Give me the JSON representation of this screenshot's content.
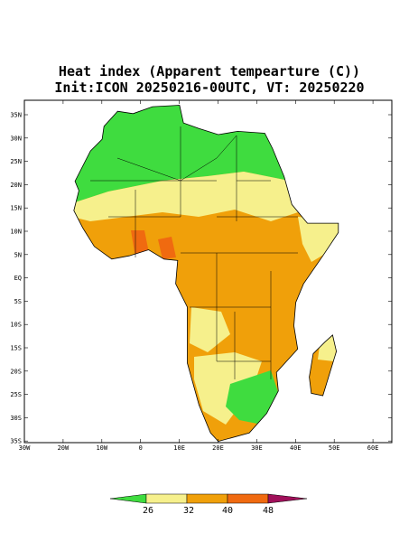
{
  "title": {
    "line1": "Heat index (Apparent tempearture (C))",
    "line2": "Init:ICON 20250216-00UTC, VT: 20250220"
  },
  "map": {
    "lat_labels": [
      "35N",
      "30N",
      "25N",
      "20N",
      "15N",
      "10N",
      "5N",
      "EQ",
      "5S",
      "10S",
      "15S",
      "20S",
      "25S",
      "30S",
      "35S"
    ],
    "lon_labels": [
      "30W",
      "20W",
      "10W",
      "0",
      "10E",
      "20E",
      "30E",
      "40E",
      "50E",
      "60E"
    ]
  },
  "colorbar": {
    "labels": [
      "26",
      "32",
      "40",
      "48"
    ]
  }
}
